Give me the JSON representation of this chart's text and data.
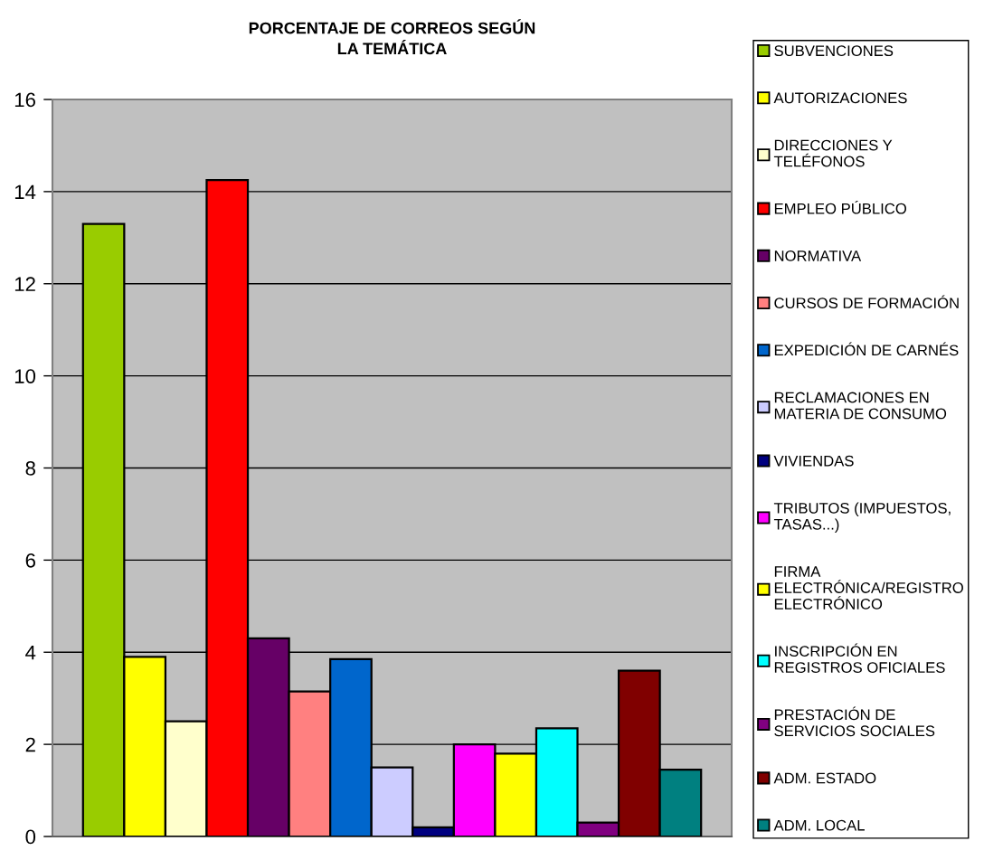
{
  "chart_data": {
    "type": "bar",
    "title": "PORCENTAJE DE CORREOS SEGÚN\nLA TEMÁTICA",
    "categories": [
      null
    ],
    "series": [
      {
        "name": "SUBVENCIONES",
        "color": "#99cc00",
        "values": [
          13.3
        ]
      },
      {
        "name": "AUTORIZACIONES",
        "color": "#ffff00",
        "values": [
          3.9
        ]
      },
      {
        "name": "DIRECCIONES Y TELÉFONOS",
        "color": "#ffffcc",
        "values": [
          2.5
        ]
      },
      {
        "name": "EMPLEO PÚBLICO",
        "color": "#ff0000",
        "values": [
          14.25
        ]
      },
      {
        "name": "NORMATIVA",
        "color": "#660066",
        "values": [
          4.3
        ]
      },
      {
        "name": "CURSOS DE FORMACIÓN",
        "color": "#ff8080",
        "values": [
          3.15
        ]
      },
      {
        "name": "EXPEDICIÓN DE CARNÉS",
        "color": "#0066cc",
        "values": [
          3.85
        ]
      },
      {
        "name": "RECLAMACIONES EN MATERIA DE CONSUMO",
        "color": "#ccccff",
        "values": [
          1.5
        ]
      },
      {
        "name": "VIVIENDAS",
        "color": "#000080",
        "values": [
          0.2
        ]
      },
      {
        "name": "TRIBUTOS (IMPUESTOS, TASAS...)",
        "color": "#ff00ff",
        "values": [
          2.0
        ]
      },
      {
        "name": "FIRMA ELECTRÓNICA/REGISTRO ELECTRÓNICO",
        "color": "#ffff00",
        "values": [
          1.8
        ]
      },
      {
        "name": "INSCRIPCIÓN EN REGISTROS OFICIALES",
        "color": "#00ffff",
        "values": [
          2.35
        ]
      },
      {
        "name": "PRESTACIÓN DE SERVICIOS SOCIALES",
        "color": "#800080",
        "values": [
          0.3
        ]
      },
      {
        "name": "ADM. ESTADO",
        "color": "#800000",
        "values": [
          3.6
        ]
      },
      {
        "name": "ADM. LOCAL",
        "color": "#008080",
        "values": [
          1.45
        ]
      }
    ],
    "ylim": [
      0,
      16
    ],
    "yticks": [
      0,
      2,
      4,
      6,
      8,
      10,
      12,
      14,
      16
    ],
    "grid": "y",
    "legend": "right"
  }
}
